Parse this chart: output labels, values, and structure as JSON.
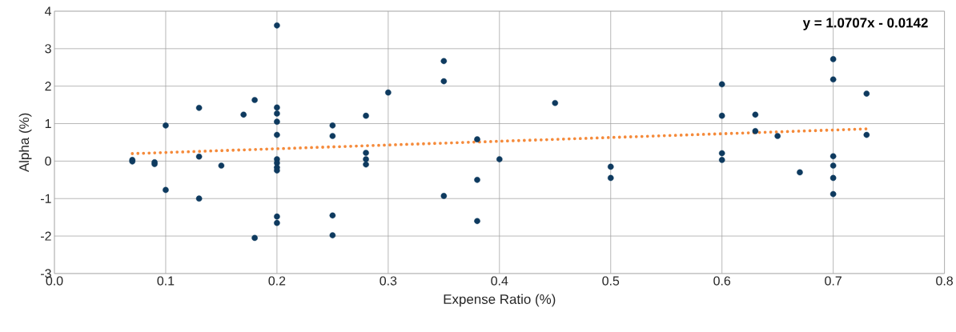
{
  "chart_data": {
    "type": "scatter",
    "xlabel": "Expense Ratio (%)",
    "ylabel": "Alpha (%)",
    "xlim": [
      0,
      0.8
    ],
    "ylim": [
      -3,
      4
    ],
    "xticks": [
      {
        "value": 0,
        "label": "0.0"
      },
      0.1,
      0.2,
      0.3,
      0.4,
      0.5,
      0.6,
      0.7,
      0.8
    ],
    "yticks": [
      -3,
      -2,
      -1,
      0,
      1,
      2,
      3,
      4
    ],
    "grid": true,
    "annotations": [
      "y = 1.0707x - 0.0142"
    ],
    "series": [
      {
        "color": "#0e3a5f",
        "marker": "circle",
        "x": [
          0.07,
          0.07,
          0.09,
          0.09,
          0.1,
          0.1,
          0.13,
          0.13,
          0.13,
          0.15,
          0.17,
          0.18,
          0.18,
          0.2,
          0.2,
          0.2,
          0.2,
          0.2,
          0.2,
          0.2,
          0.2,
          0.2,
          0.2,
          0.2,
          0.25,
          0.25,
          0.25,
          0.25,
          0.28,
          0.28,
          0.28,
          0.28,
          0.3,
          0.35,
          0.35,
          0.35,
          0.38,
          0.38,
          0.38,
          0.4,
          0.45,
          0.5,
          0.5,
          0.6,
          0.6,
          0.6,
          0.6,
          0.63,
          0.63,
          0.65,
          0.67,
          0.7,
          0.7,
          0.7,
          0.7,
          0.7,
          0.7,
          0.73,
          0.73
        ],
        "values": [
          0.03,
          -0.01,
          -0.03,
          -0.08,
          0.95,
          -0.77,
          1.42,
          0.12,
          -1.0,
          -0.12,
          1.24,
          1.63,
          -2.05,
          3.62,
          1.43,
          1.27,
          1.05,
          0.7,
          0.05,
          -0.05,
          -0.17,
          -0.25,
          -1.48,
          -1.65,
          0.95,
          0.67,
          -1.45,
          -1.98,
          1.21,
          0.22,
          0.05,
          -0.09,
          1.83,
          2.67,
          2.13,
          -0.93,
          0.58,
          -0.5,
          -1.6,
          0.05,
          1.55,
          -0.15,
          -0.45,
          2.05,
          1.21,
          0.21,
          0.03,
          1.24,
          0.8,
          0.67,
          -0.3,
          2.72,
          2.18,
          0.13,
          -0.12,
          -0.45,
          -0.88,
          1.8,
          0.7
        ]
      },
      {
        "type": "line",
        "color": "#f58a3a",
        "marker": "none",
        "line_style": "dotted",
        "x": [
          0.07,
          0.73
        ],
        "values": [
          0.2,
          0.86
        ]
      }
    ]
  }
}
